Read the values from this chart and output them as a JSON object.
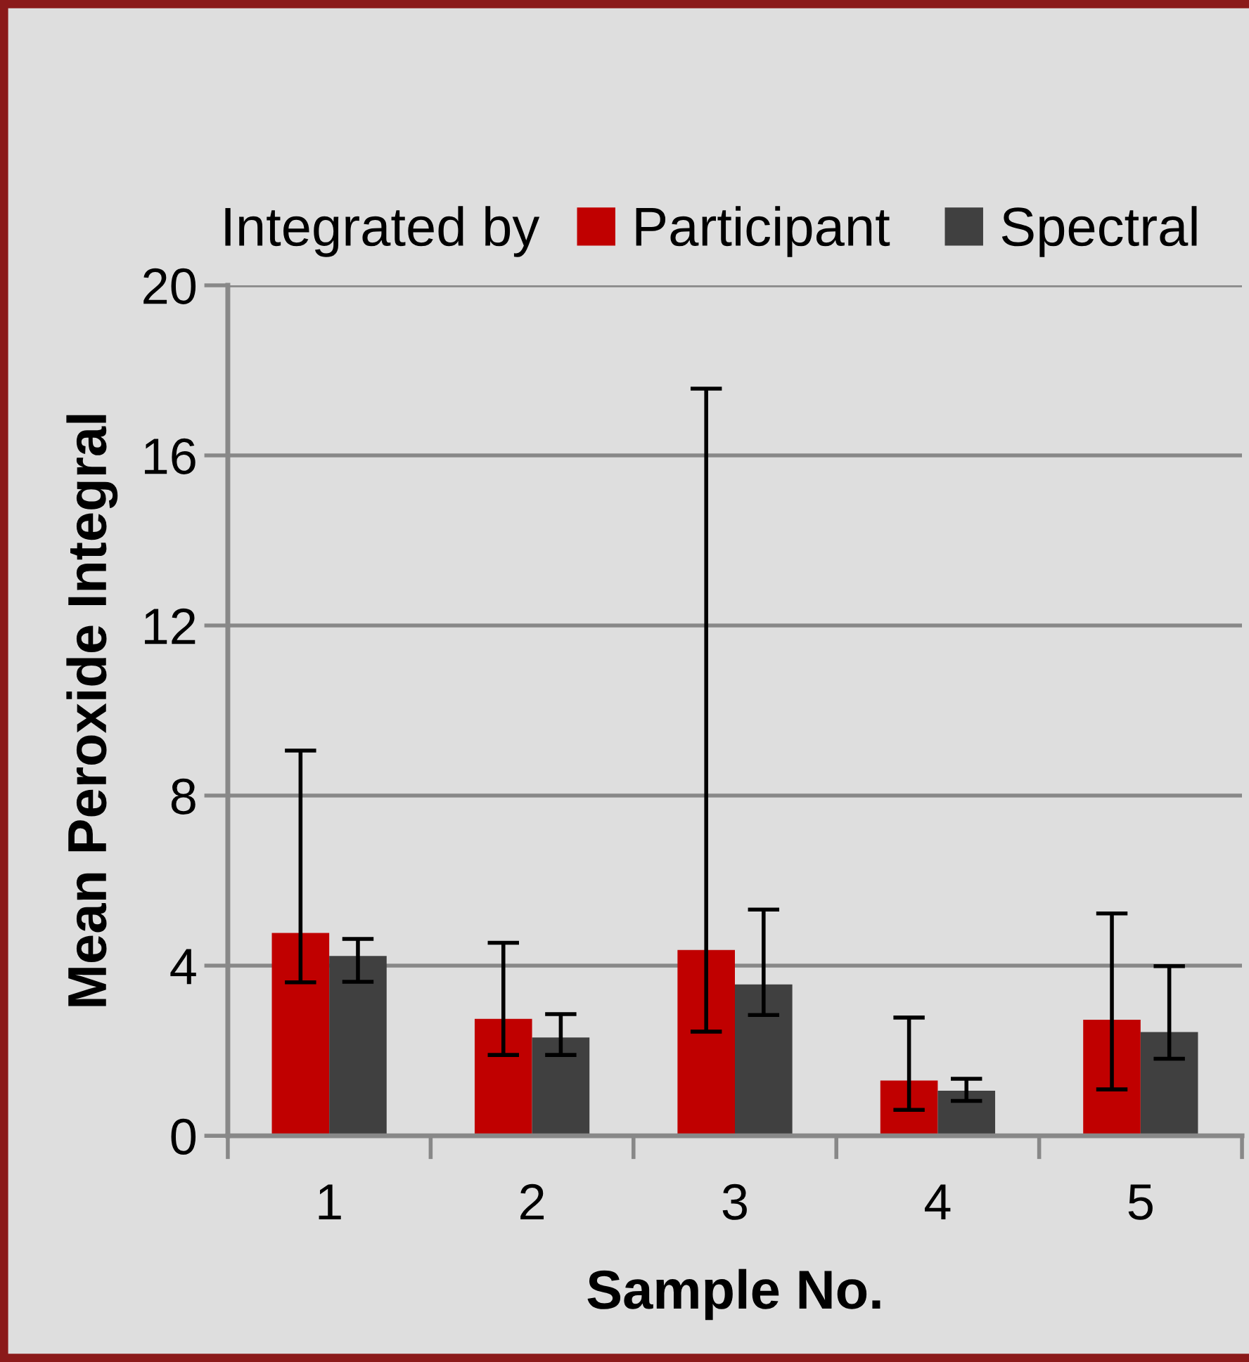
{
  "chart_data": {
    "type": "bar",
    "xlabel": "Sample No.",
    "ylabel": "Mean Peroxide Integral",
    "legend_title": "Integrated by",
    "categories": [
      "1",
      "2",
      "3",
      "4",
      "5"
    ],
    "series": [
      {
        "name": "Participant",
        "color": "#c00000",
        "values": [
          4.77,
          2.75,
          4.37,
          1.3,
          2.73
        ],
        "errors": [
          [
            3.61,
            9.06
          ],
          [
            1.9,
            4.54
          ],
          [
            2.45,
            17.57
          ],
          [
            0.61,
            2.78
          ],
          [
            1.09,
            5.23
          ]
        ]
      },
      {
        "name": "Spectral",
        "color": "#404040",
        "values": [
          4.23,
          2.31,
          3.56,
          1.06,
          2.44
        ],
        "errors": [
          [
            3.62,
            4.63
          ],
          [
            1.9,
            2.86
          ],
          [
            2.84,
            5.32
          ],
          [
            0.82,
            1.34
          ],
          [
            1.81,
            3.99
          ]
        ]
      }
    ],
    "ylim": [
      0,
      20
    ],
    "yticks": [
      0,
      4,
      8,
      12,
      16,
      20
    ],
    "grid": "y",
    "legend": "top"
  }
}
